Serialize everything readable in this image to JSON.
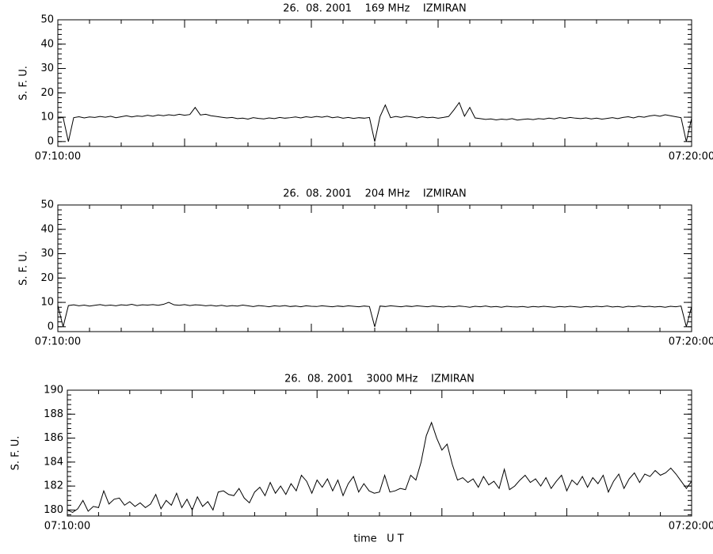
{
  "chart_data": [
    {
      "type": "line",
      "title": "26.  08. 2001    169 MHz    IZMIRAN",
      "ylabel": "S. F. U.",
      "xlim": [
        "07:10:00",
        "07:20:00"
      ],
      "xticks": [
        "07:10:00",
        "07:20:00"
      ],
      "ylim": [
        -2,
        50
      ],
      "yticks": [
        0,
        10,
        20,
        30,
        40,
        50
      ],
      "color": "#000000",
      "x": [
        "07:10:00",
        "07:10:05",
        "07:10:10",
        "07:10:15",
        "07:10:20",
        "07:10:25",
        "07:10:30",
        "07:10:35",
        "07:10:40",
        "07:10:45",
        "07:10:50",
        "07:10:55",
        "07:11:00",
        "07:11:05",
        "07:11:10",
        "07:11:15",
        "07:11:20",
        "07:11:25",
        "07:11:30",
        "07:11:35",
        "07:11:40",
        "07:11:45",
        "07:11:50",
        "07:11:55",
        "07:12:00",
        "07:12:05",
        "07:12:10",
        "07:12:15",
        "07:12:20",
        "07:12:25",
        "07:12:30",
        "07:12:35",
        "07:12:40",
        "07:12:45",
        "07:12:50",
        "07:12:55",
        "07:13:00",
        "07:13:05",
        "07:13:10",
        "07:13:15",
        "07:13:20",
        "07:13:25",
        "07:13:30",
        "07:13:35",
        "07:13:40",
        "07:13:45",
        "07:13:50",
        "07:13:55",
        "07:14:00",
        "07:14:05",
        "07:14:10",
        "07:14:15",
        "07:14:20",
        "07:14:25",
        "07:14:30",
        "07:14:35",
        "07:14:40",
        "07:14:45",
        "07:14:50",
        "07:14:55",
        "07:15:00",
        "07:15:05",
        "07:15:10",
        "07:15:15",
        "07:15:20",
        "07:15:25",
        "07:15:30",
        "07:15:35",
        "07:15:40",
        "07:15:45",
        "07:15:50",
        "07:15:55",
        "07:16:00",
        "07:16:05",
        "07:16:10",
        "07:16:15",
        "07:16:20",
        "07:16:25",
        "07:16:30",
        "07:16:35",
        "07:16:40",
        "07:16:45",
        "07:16:50",
        "07:16:55",
        "07:17:00",
        "07:17:05",
        "07:17:10",
        "07:17:15",
        "07:17:20",
        "07:17:25",
        "07:17:30",
        "07:17:35",
        "07:17:40",
        "07:17:45",
        "07:17:50",
        "07:17:55",
        "07:18:00",
        "07:18:05",
        "07:18:10",
        "07:18:15",
        "07:18:20",
        "07:18:25",
        "07:18:30",
        "07:18:35",
        "07:18:40",
        "07:18:45",
        "07:18:50",
        "07:18:55",
        "07:19:00",
        "07:19:05",
        "07:19:10",
        "07:19:15",
        "07:19:20",
        "07:19:25",
        "07:19:30",
        "07:19:35",
        "07:19:40",
        "07:19:45",
        "07:19:50",
        "07:19:55",
        "07:20:00"
      ],
      "values": [
        9.6,
        9.9,
        0,
        9.8,
        10.2,
        9.7,
        10.1,
        9.9,
        10.3,
        10.0,
        10.4,
        9.8,
        10.2,
        10.6,
        10.1,
        10.5,
        10.3,
        10.8,
        10.4,
        10.9,
        10.6,
        11.0,
        10.7,
        11.2,
        10.8,
        11.1,
        14.0,
        10.9,
        11.2,
        10.6,
        10.3,
        10.0,
        9.7,
        9.9,
        9.4,
        9.6,
        9.2,
        9.8,
        9.5,
        9.3,
        9.7,
        9.4,
        9.9,
        9.6,
        9.8,
        10.1,
        9.7,
        10.2,
        9.9,
        10.3,
        10.0,
        10.4,
        9.8,
        10.1,
        9.6,
        9.9,
        9.5,
        9.8,
        9.6,
        9.9,
        0,
        10.2,
        15.0,
        9.8,
        10.3,
        9.9,
        10.4,
        10.1,
        9.7,
        10.2,
        9.8,
        10.0,
        9.6,
        9.9,
        10.3,
        13.0,
        16.0,
        10.4,
        14.0,
        9.7,
        9.4,
        9.1,
        9.3,
        8.9,
        9.2,
        9.0,
        9.4,
        8.8,
        9.1,
        9.3,
        9.0,
        9.4,
        9.2,
        9.6,
        9.3,
        9.8,
        9.5,
        9.9,
        9.6,
        9.4,
        9.7,
        9.3,
        9.6,
        9.2,
        9.5,
        9.8,
        9.4,
        9.9,
        10.2,
        9.7,
        10.3,
        10.0,
        10.5,
        10.8,
        10.4,
        11.0,
        10.6,
        10.2,
        9.8,
        0,
        9.6
      ]
    },
    {
      "type": "line",
      "title": "26.  08. 2001    204 MHz    IZMIRAN",
      "ylabel": "S. F. U.",
      "xlim": [
        "07:10:00",
        "07:20:00"
      ],
      "xticks": [
        "07:10:00",
        "07:20:00"
      ],
      "ylim": [
        -2,
        50
      ],
      "yticks": [
        0,
        10,
        20,
        30,
        40,
        50
      ],
      "color": "#000000",
      "x": [
        "07:10:00",
        "07:10:05",
        "07:10:10",
        "07:10:15",
        "07:10:20",
        "07:10:25",
        "07:10:30",
        "07:10:35",
        "07:10:40",
        "07:10:45",
        "07:10:50",
        "07:10:55",
        "07:11:00",
        "07:11:05",
        "07:11:10",
        "07:11:15",
        "07:11:20",
        "07:11:25",
        "07:11:30",
        "07:11:35",
        "07:11:40",
        "07:11:45",
        "07:11:50",
        "07:11:55",
        "07:12:00",
        "07:12:05",
        "07:12:10",
        "07:12:15",
        "07:12:20",
        "07:12:25",
        "07:12:30",
        "07:12:35",
        "07:12:40",
        "07:12:45",
        "07:12:50",
        "07:12:55",
        "07:13:00",
        "07:13:05",
        "07:13:10",
        "07:13:15",
        "07:13:20",
        "07:13:25",
        "07:13:30",
        "07:13:35",
        "07:13:40",
        "07:13:45",
        "07:13:50",
        "07:13:55",
        "07:14:00",
        "07:14:05",
        "07:14:10",
        "07:14:15",
        "07:14:20",
        "07:14:25",
        "07:14:30",
        "07:14:35",
        "07:14:40",
        "07:14:45",
        "07:14:50",
        "07:14:55",
        "07:15:00",
        "07:15:05",
        "07:15:10",
        "07:15:15",
        "07:15:20",
        "07:15:25",
        "07:15:30",
        "07:15:35",
        "07:15:40",
        "07:15:45",
        "07:15:50",
        "07:15:55",
        "07:16:00",
        "07:16:05",
        "07:16:10",
        "07:16:15",
        "07:16:20",
        "07:16:25",
        "07:16:30",
        "07:16:35",
        "07:16:40",
        "07:16:45",
        "07:16:50",
        "07:16:55",
        "07:17:00",
        "07:17:05",
        "07:17:10",
        "07:17:15",
        "07:17:20",
        "07:17:25",
        "07:17:30",
        "07:17:35",
        "07:17:40",
        "07:17:45",
        "07:17:50",
        "07:17:55",
        "07:18:00",
        "07:18:05",
        "07:18:10",
        "07:18:15",
        "07:18:20",
        "07:18:25",
        "07:18:30",
        "07:18:35",
        "07:18:40",
        "07:18:45",
        "07:18:50",
        "07:18:55",
        "07:19:00",
        "07:19:05",
        "07:19:10",
        "07:19:15",
        "07:19:20",
        "07:19:25",
        "07:19:30",
        "07:19:35",
        "07:19:40",
        "07:19:45",
        "07:19:50",
        "07:19:55",
        "07:20:00"
      ],
      "values": [
        8.8,
        0,
        8.7,
        9.0,
        8.6,
        8.9,
        8.5,
        8.8,
        9.1,
        8.7,
        8.9,
        8.6,
        9.0,
        8.8,
        9.2,
        8.7,
        9.0,
        8.9,
        9.1,
        8.8,
        9.2,
        10.0,
        9.0,
        8.8,
        9.1,
        8.7,
        9.0,
        8.9,
        8.6,
        8.8,
        8.5,
        8.8,
        8.4,
        8.7,
        8.5,
        8.9,
        8.6,
        8.3,
        8.7,
        8.5,
        8.2,
        8.6,
        8.4,
        8.7,
        8.3,
        8.5,
        8.2,
        8.6,
        8.4,
        8.3,
        8.6,
        8.4,
        8.2,
        8.5,
        8.3,
        8.6,
        8.4,
        8.2,
        8.5,
        8.3,
        0,
        8.5,
        8.3,
        8.6,
        8.4,
        8.2,
        8.5,
        8.3,
        8.6,
        8.4,
        8.2,
        8.5,
        8.3,
        8.1,
        8.4,
        8.2,
        8.5,
        8.3,
        8.0,
        8.4,
        8.2,
        8.5,
        8.1,
        8.3,
        8.0,
        8.4,
        8.2,
        8.1,
        8.3,
        8.0,
        8.3,
        8.1,
        8.4,
        8.2,
        8.0,
        8.3,
        8.1,
        8.4,
        8.2,
        8.0,
        8.3,
        8.1,
        8.4,
        8.2,
        8.5,
        8.1,
        8.3,
        8.0,
        8.4,
        8.2,
        8.5,
        8.2,
        8.4,
        8.1,
        8.3,
        8.0,
        8.4,
        8.2,
        8.5,
        0,
        8.3
      ]
    },
    {
      "type": "line",
      "title": "26.  08. 2001    3000 MHz    IZMIRAN",
      "ylabel": "S. F. U.",
      "xlabel": "time   U T",
      "xlim": [
        "07:10:00",
        "07:20:00"
      ],
      "xticks": [
        "07:10:00",
        "07:20:00"
      ],
      "ylim": [
        179.5,
        190
      ],
      "yticks": [
        180,
        182,
        184,
        186,
        188,
        190
      ],
      "color": "#000000",
      "x": [
        "07:10:00",
        "07:10:05",
        "07:10:10",
        "07:10:15",
        "07:10:20",
        "07:10:25",
        "07:10:30",
        "07:10:35",
        "07:10:40",
        "07:10:45",
        "07:10:50",
        "07:10:55",
        "07:11:00",
        "07:11:05",
        "07:11:10",
        "07:11:15",
        "07:11:20",
        "07:11:25",
        "07:11:30",
        "07:11:35",
        "07:11:40",
        "07:11:45",
        "07:11:50",
        "07:11:55",
        "07:12:00",
        "07:12:05",
        "07:12:10",
        "07:12:15",
        "07:12:20",
        "07:12:25",
        "07:12:30",
        "07:12:35",
        "07:12:40",
        "07:12:45",
        "07:12:50",
        "07:12:55",
        "07:13:00",
        "07:13:05",
        "07:13:10",
        "07:13:15",
        "07:13:20",
        "07:13:25",
        "07:13:30",
        "07:13:35",
        "07:13:40",
        "07:13:45",
        "07:13:50",
        "07:13:55",
        "07:14:00",
        "07:14:05",
        "07:14:10",
        "07:14:15",
        "07:14:20",
        "07:14:25",
        "07:14:30",
        "07:14:35",
        "07:14:40",
        "07:14:45",
        "07:14:50",
        "07:14:55",
        "07:15:00",
        "07:15:05",
        "07:15:10",
        "07:15:15",
        "07:15:20",
        "07:15:25",
        "07:15:30",
        "07:15:35",
        "07:15:40",
        "07:15:45",
        "07:15:50",
        "07:15:55",
        "07:16:00",
        "07:16:05",
        "07:16:10",
        "07:16:15",
        "07:16:20",
        "07:16:25",
        "07:16:30",
        "07:16:35",
        "07:16:40",
        "07:16:45",
        "07:16:50",
        "07:16:55",
        "07:17:00",
        "07:17:05",
        "07:17:10",
        "07:17:15",
        "07:17:20",
        "07:17:25",
        "07:17:30",
        "07:17:35",
        "07:17:40",
        "07:17:45",
        "07:17:50",
        "07:17:55",
        "07:18:00",
        "07:18:05",
        "07:18:10",
        "07:18:15",
        "07:18:20",
        "07:18:25",
        "07:18:30",
        "07:18:35",
        "07:18:40",
        "07:18:45",
        "07:18:50",
        "07:18:55",
        "07:19:00",
        "07:19:05",
        "07:19:10",
        "07:19:15",
        "07:19:20",
        "07:19:25",
        "07:19:30",
        "07:19:35",
        "07:19:40",
        "07:19:45",
        "07:19:50",
        "07:19:55",
        "07:20:00"
      ],
      "values": [
        180.0,
        179.8,
        180.1,
        180.8,
        179.9,
        180.3,
        180.2,
        181.6,
        180.5,
        180.9,
        181.0,
        180.4,
        180.7,
        180.3,
        180.6,
        180.2,
        180.5,
        181.3,
        180.1,
        180.8,
        180.4,
        181.4,
        180.2,
        180.9,
        180.0,
        181.1,
        180.3,
        180.7,
        180.0,
        181.5,
        181.6,
        181.3,
        181.2,
        181.8,
        181.0,
        180.6,
        181.5,
        181.9,
        181.2,
        182.3,
        181.4,
        182.0,
        181.3,
        182.2,
        181.6,
        182.9,
        182.4,
        181.4,
        182.5,
        181.9,
        182.6,
        181.6,
        182.5,
        181.2,
        182.2,
        182.8,
        181.5,
        182.2,
        181.6,
        181.4,
        181.5,
        182.9,
        181.5,
        181.6,
        181.8,
        181.7,
        182.9,
        182.5,
        184.0,
        186.2,
        187.3,
        186.0,
        185.0,
        185.5,
        183.8,
        182.5,
        182.7,
        182.3,
        182.6,
        181.9,
        182.8,
        182.1,
        182.4,
        181.8,
        183.4,
        181.7,
        182.0,
        182.5,
        182.9,
        182.3,
        182.6,
        182.0,
        182.7,
        181.8,
        182.4,
        182.9,
        181.6,
        182.5,
        182.1,
        182.8,
        181.9,
        182.7,
        182.2,
        182.9,
        181.5,
        182.4,
        183.0,
        181.8,
        182.6,
        183.1,
        182.3,
        183.0,
        182.8,
        183.3,
        182.9,
        183.1,
        183.5,
        183.0,
        182.4,
        181.8,
        182.4
      ]
    }
  ]
}
